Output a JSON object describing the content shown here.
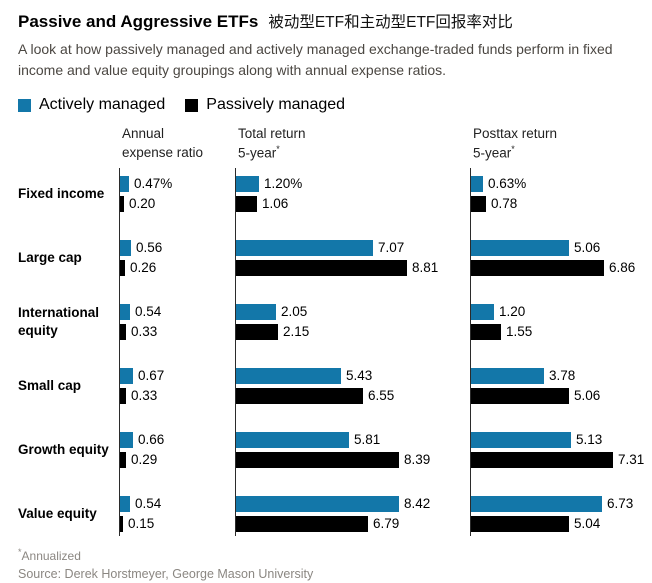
{
  "title": "Passive and Aggressive ETFs",
  "title_cn": "被动型ETF和主动型ETF回报率对比",
  "subtitle": "A look at how passively managed and actively managed exchange-traded funds perform in fixed income and value equity groupings along with annual expense ratios.",
  "footnote_marker": "*",
  "footnote": "Annualized",
  "source": "Source: Derek Horstmeyer, George Mason University",
  "legend": {
    "items": [
      {
        "label": "Actively managed",
        "color": "#1377a9"
      },
      {
        "label": "Passively managed",
        "color": "#000000"
      }
    ]
  },
  "chart_data": {
    "type": "bar",
    "orientation": "horizontal",
    "legend_position": "top",
    "grid": false,
    "xlim": [
      0,
      9.4
    ],
    "series": [
      "Actively managed",
      "Passively managed"
    ],
    "colors": [
      "#1377a9",
      "#000000"
    ],
    "axis_color": "#2b2b2b",
    "columns": [
      {
        "key": "expense",
        "header_line1": "Annual",
        "header_line2": "expense ratio",
        "annualized": false
      },
      {
        "key": "total-return",
        "header_line1": "Total return",
        "header_line2": "5-year",
        "annualized": true
      },
      {
        "key": "posttax-return",
        "header_line1": "Posttax return",
        "header_line2": "5-year",
        "annualized": true
      }
    ],
    "categories": [
      "Fixed income",
      "Large cap",
      "International equity",
      "Small cap",
      "Growth equity",
      "Value equity"
    ],
    "rows": [
      {
        "category": "Fixed income",
        "cells": [
          {
            "active": 0.47,
            "passive": 0.2,
            "active_label": "0.47%",
            "passive_label": "0.20"
          },
          {
            "active": 1.2,
            "passive": 1.06,
            "active_label": "1.20%",
            "passive_label": "1.06"
          },
          {
            "active": 0.63,
            "passive": 0.78,
            "active_label": "0.63%",
            "passive_label": "0.78"
          }
        ]
      },
      {
        "category": "Large cap",
        "cells": [
          {
            "active": 0.56,
            "passive": 0.26,
            "active_label": "0.56",
            "passive_label": "0.26"
          },
          {
            "active": 7.07,
            "passive": 8.81,
            "active_label": "7.07",
            "passive_label": "8.81"
          },
          {
            "active": 5.06,
            "passive": 6.86,
            "active_label": "5.06",
            "passive_label": "6.86"
          }
        ]
      },
      {
        "category": "International equity",
        "cells": [
          {
            "active": 0.54,
            "passive": 0.33,
            "active_label": "0.54",
            "passive_label": "0.33"
          },
          {
            "active": 2.05,
            "passive": 2.15,
            "active_label": "2.05",
            "passive_label": "2.15"
          },
          {
            "active": 1.2,
            "passive": 1.55,
            "active_label": "1.20",
            "passive_label": "1.55"
          }
        ]
      },
      {
        "category": "Small cap",
        "cells": [
          {
            "active": 0.67,
            "passive": 0.33,
            "active_label": "0.67",
            "passive_label": "0.33"
          },
          {
            "active": 5.43,
            "passive": 6.55,
            "active_label": "5.43",
            "passive_label": "6.55"
          },
          {
            "active": 3.78,
            "passive": 5.06,
            "active_label": "3.78",
            "passive_label": "5.06"
          }
        ]
      },
      {
        "category": "Growth equity",
        "cells": [
          {
            "active": 0.66,
            "passive": 0.29,
            "active_label": "0.66",
            "passive_label": "0.29"
          },
          {
            "active": 5.81,
            "passive": 8.39,
            "active_label": "5.81",
            "passive_label": "8.39"
          },
          {
            "active": 5.13,
            "passive": 7.31,
            "active_label": "5.13",
            "passive_label": "7.31"
          }
        ]
      },
      {
        "category": "Value equity",
        "cells": [
          {
            "active": 0.54,
            "passive": 0.15,
            "active_label": "0.54",
            "passive_label": "0.15"
          },
          {
            "active": 8.42,
            "passive": 6.79,
            "active_label": "8.42",
            "passive_label": "6.79"
          },
          {
            "active": 6.73,
            "passive": 5.04,
            "active_label": "6.73",
            "passive_label": "5.04"
          }
        ]
      }
    ]
  }
}
